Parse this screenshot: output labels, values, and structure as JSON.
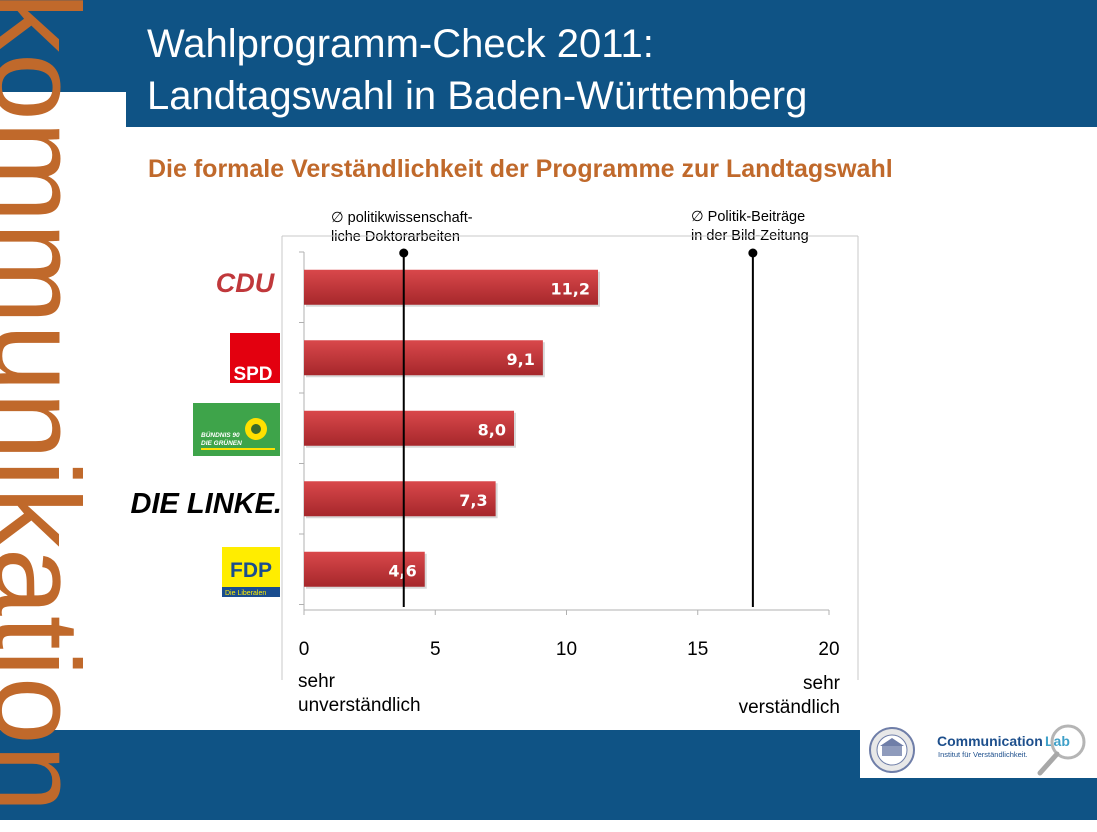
{
  "title_line1": "Wahlprogramm-Check 2011:",
  "title_line2": "Landtagswahl in Baden-Württemberg",
  "subtitle": "Die formale Verständlichkeit der Programme zur Landtagswahl",
  "watermark": "kommunikation",
  "colors": {
    "band": "#0f5385",
    "accent": "#c0692b",
    "bar": "#c0383b",
    "bar_dark": "#8f2226"
  },
  "references": {
    "left": {
      "line1": "∅ politikwissenschaft-",
      "line2": "liche Doktorarbeiten",
      "value": 3.8
    },
    "right": {
      "line1": "∅  Politik-Beiträge",
      "line2": "in der Bild-Zeitung",
      "value": 17.1
    }
  },
  "axis_end_labels": {
    "left_line1": "sehr",
    "left_line2": "unverständlich",
    "right_line1": "sehr",
    "right_line2": "verständlich"
  },
  "logos": {
    "cdu": "CDU",
    "spd": "SPD",
    "gruene_line1": "BÜNDNIS 90",
    "gruene_line2": "DIE GRÜNEN",
    "linke": "DIE LINKE.",
    "fdp": "FDP",
    "fdp_sub": "Die Liberalen"
  },
  "footer": {
    "brand_a": "Communication",
    "brand_b": "Lab",
    "tagline": "Institut für Verständlichkeit."
  },
  "chart_data": {
    "type": "bar",
    "orientation": "horizontal",
    "categories": [
      "CDU",
      "SPD",
      "BÜNDNIS 90 / DIE GRÜNEN",
      "DIE LINKE.",
      "FDP"
    ],
    "values": [
      11.2,
      9.1,
      8.0,
      7.3,
      4.6
    ],
    "value_labels": [
      "11,2",
      "9,1",
      "8,0",
      "7,3",
      "4,6"
    ],
    "xlim": [
      0,
      20
    ],
    "xticks": [
      0,
      5,
      10,
      15,
      20
    ],
    "grid": false
  }
}
